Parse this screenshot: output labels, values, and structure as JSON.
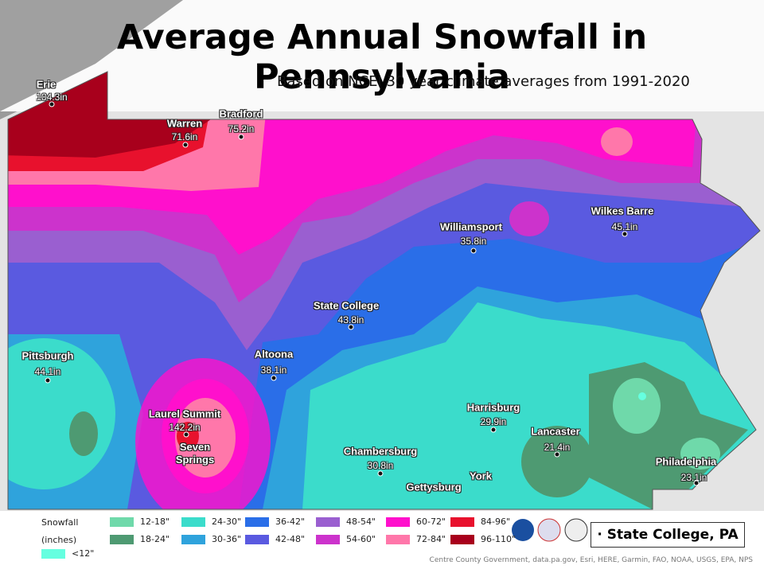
{
  "header": {
    "title": "Average Annual Snowfall in Pennsylvania",
    "subtitle": "Based on NCEI 30 year climate averages from 1991-2020"
  },
  "cities": [
    {
      "name": "Erie",
      "value": "104.3in"
    },
    {
      "name": "Warren",
      "value": "71.6in"
    },
    {
      "name": "Bradford",
      "value": "75.2in"
    },
    {
      "name": "Williamsport",
      "value": "35.8in"
    },
    {
      "name": "Wilkes Barre",
      "value": "45.1in"
    },
    {
      "name": "State College",
      "value": "43.8in"
    },
    {
      "name": "Pittsburgh",
      "value": "44.1in"
    },
    {
      "name": "Altoona",
      "value": "38.1in"
    },
    {
      "name": "Laurel Summit",
      "value": "142.2in"
    },
    {
      "name": "Seven Springs"
    },
    {
      "name": "Harrisburg",
      "value": "29.9in"
    },
    {
      "name": "Lancaster",
      "value": "21.4in"
    },
    {
      "name": "Chambersburg",
      "value": "30.8in"
    },
    {
      "name": "Philadelphia",
      "value": "23.1in"
    },
    {
      "name": "Gettysburg"
    },
    {
      "name": "York"
    }
  ],
  "legend": {
    "title": "Snowfall",
    "unit": "(inches)",
    "items": [
      {
        "label": "12-18\"",
        "color": "#6fd9aa"
      },
      {
        "label": "18-24\"",
        "color": "#4e9a72"
      },
      {
        "label": "24-30\"",
        "color": "#3bdccb"
      },
      {
        "label": "30-36\"",
        "color": "#2fa3dc"
      },
      {
        "label": "36-42\"",
        "color": "#2a6ee8"
      },
      {
        "label": "42-48\"",
        "color": "#5a5ae0"
      },
      {
        "label": "48-54\"",
        "color": "#9a5fd0"
      },
      {
        "label": "54-60\"",
        "color": "#cc33cc"
      },
      {
        "label": "60-72\"",
        "color": "#ff10cc"
      },
      {
        "label": "72-84\"",
        "color": "#ff77aa"
      },
      {
        "label": "84-96\"",
        "color": "#e8112d"
      },
      {
        "label": "96-110\"",
        "color": "#a8001c"
      },
      {
        "label": "<12\"",
        "color": "#66ffe0"
      }
    ]
  },
  "office": "· State College, PA",
  "attribution": "Centre County Government, data.pa.gov, Esri, HERE, Garmin, FAO, NOAA, USGS, EPA, NPS"
}
